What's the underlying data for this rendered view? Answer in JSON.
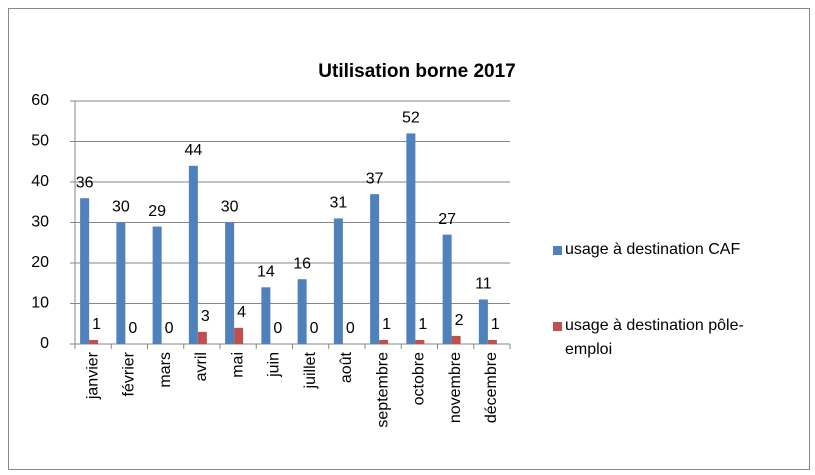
{
  "chart_data": {
    "type": "bar",
    "title": "Utilisation borne 2017",
    "categories": [
      "janvier",
      "février",
      "mars",
      "avril",
      "mai",
      "juin",
      "juillet",
      "août",
      "septembre",
      "octobre",
      "novembre",
      "décembre"
    ],
    "series": [
      {
        "name": "usage à destination CAF",
        "color": "#4f81bd",
        "values": [
          36,
          30,
          29,
          44,
          30,
          14,
          16,
          31,
          37,
          52,
          27,
          11
        ]
      },
      {
        "name": "usage à destination pôle-emploi",
        "color": "#c0504d",
        "values": [
          1,
          0,
          0,
          3,
          4,
          0,
          0,
          0,
          1,
          1,
          2,
          1
        ]
      }
    ],
    "ylim": [
      0,
      60
    ],
    "yticks": [
      0,
      10,
      20,
      30,
      40,
      50,
      60
    ],
    "grid": true,
    "legend": "right"
  }
}
